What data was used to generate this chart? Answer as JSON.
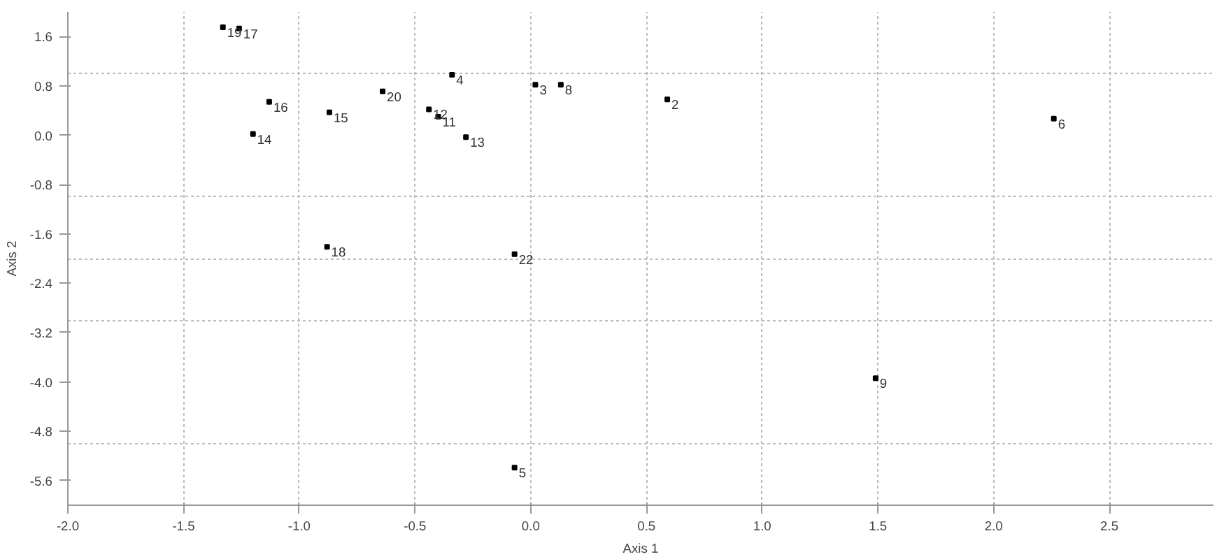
{
  "chart_data": {
    "type": "scatter",
    "xlabel": "Axis 1",
    "ylabel": "Axis 2",
    "x": [
      -1.33,
      -1.26,
      -1.13,
      -1.2,
      -0.87,
      -0.64,
      -0.34,
      -0.44,
      -0.4,
      -0.28,
      0.02,
      0.13,
      -0.88,
      -0.07,
      0.59,
      2.26,
      1.49,
      -0.07
    ],
    "series": [
      {
        "color": "#000000",
        "values": [
          1.75,
          1.73,
          0.54,
          0.02,
          0.37,
          0.71,
          0.98,
          0.42,
          0.3,
          -0.03,
          0.82,
          0.82,
          -1.81,
          -1.93,
          0.58,
          0.27,
          -3.94,
          -5.39
        ]
      }
    ],
    "annotations": [
      {
        "text": "19",
        "x": -1.33,
        "y": 1.75
      },
      {
        "text": "17",
        "x": -1.26,
        "y": 1.73
      },
      {
        "text": "16",
        "x": -1.13,
        "y": 0.54
      },
      {
        "text": "14",
        "x": -1.2,
        "y": 0.02
      },
      {
        "text": "15",
        "x": -0.87,
        "y": 0.37
      },
      {
        "text": "20",
        "x": -0.64,
        "y": 0.71
      },
      {
        "text": "4",
        "x": -0.34,
        "y": 0.98
      },
      {
        "text": "12",
        "x": -0.44,
        "y": 0.42
      },
      {
        "text": "11",
        "x": -0.4,
        "y": 0.3
      },
      {
        "text": "13",
        "x": -0.28,
        "y": -0.03
      },
      {
        "text": "3",
        "x": 0.02,
        "y": 0.82
      },
      {
        "text": "8",
        "x": 0.13,
        "y": 0.82
      },
      {
        "text": "18",
        "x": -0.88,
        "y": -1.81
      },
      {
        "text": "22",
        "x": -0.07,
        "y": -1.93
      },
      {
        "text": "2",
        "x": 0.59,
        "y": 0.58
      },
      {
        "text": "6",
        "x": 2.26,
        "y": 0.27
      },
      {
        "text": "9",
        "x": 1.49,
        "y": -3.94
      },
      {
        "text": "5",
        "x": -0.07,
        "y": -5.39
      }
    ],
    "xlim": [
      -2.0,
      2.95
    ],
    "ylim": [
      -6.0,
      2.0
    ],
    "xticks": [
      {
        "value": -2.0,
        "label": "-2.0"
      },
      {
        "value": -1.5,
        "label": "-1.5"
      },
      {
        "value": -1.0,
        "label": "-1.0"
      },
      {
        "value": -0.5,
        "label": "-0.5"
      },
      {
        "value": 0.0,
        "label": "0.0"
      },
      {
        "value": 0.5,
        "label": "0.5"
      },
      {
        "value": 1.0,
        "label": "1.0"
      },
      {
        "value": 1.5,
        "label": "1.5"
      },
      {
        "value": 2.0,
        "label": "2.0"
      },
      {
        "value": 2.5,
        "label": "2.5"
      }
    ],
    "yticks": [
      {
        "value": 1.6,
        "label": "1.6"
      },
      {
        "value": 0.8,
        "label": "0.8"
      },
      {
        "value": 0.0,
        "label": "0.0"
      },
      {
        "value": -0.8,
        "label": "-0.8"
      },
      {
        "value": -1.6,
        "label": "-1.6"
      },
      {
        "value": -2.4,
        "label": "-2.4"
      },
      {
        "value": -3.2,
        "label": "-3.2"
      },
      {
        "value": -4.0,
        "label": "-4.0"
      },
      {
        "value": -4.8,
        "label": "-4.8"
      },
      {
        "value": -5.6,
        "label": "-5.6"
      },
      {
        "value": 1,
        "label": null
      },
      {
        "value": -1,
        "label": null
      },
      {
        "value": -2,
        "label": null
      },
      {
        "value": -3,
        "label": null
      },
      {
        "value": -5,
        "label": null
      }
    ],
    "grid": true,
    "marker": "square"
  }
}
